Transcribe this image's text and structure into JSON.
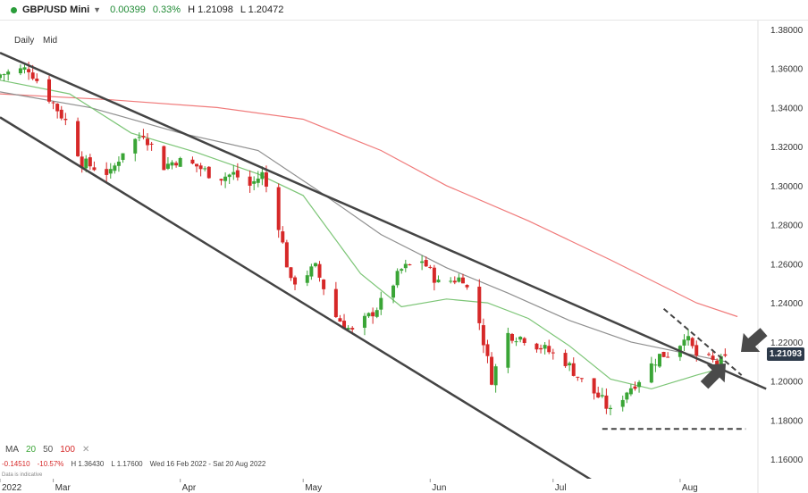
{
  "header": {
    "symbol": "GBP/USD Mini",
    "change": "0.00399",
    "change_pct": "0.33%",
    "high": "H 1.21098",
    "low": "L 1.20472"
  },
  "timeframe": {
    "period": "Daily",
    "price_type": "Mid"
  },
  "ma_legend": {
    "label": "MA",
    "p1": "20",
    "p2": "50",
    "p3": "100"
  },
  "stats": {
    "chg": "-0.14510",
    "chg_pct": "-10.57%",
    "high": "H 1.36430",
    "low": "L 1.17600",
    "range": "Wed 16 Feb 2022 - Sat 20 Aug 2022"
  },
  "indicative": "Data is indicative",
  "price_badge": "1.21093",
  "colors": {
    "up": "#3aa536",
    "down": "#d62828",
    "ma20": "#7cc576",
    "ma50": "#8f8f8f",
    "ma100": "#f07a7a",
    "trend": "#444444"
  },
  "chart_data": {
    "type": "candlestick",
    "ylim": [
      1.15,
      1.385
    ],
    "y_ticks": [
      "1.38000",
      "1.36000",
      "1.34000",
      "1.32000",
      "1.30000",
      "1.28000",
      "1.26000",
      "1.24000",
      "1.22000",
      "1.20000",
      "1.18000",
      "1.16000"
    ],
    "x_ticks": [
      {
        "label": "2022",
        "date": "2022-02-16"
      },
      {
        "label": "Mar",
        "date": "2022-03-01"
      },
      {
        "label": "Apr",
        "date": "2022-04-01"
      },
      {
        "label": "May",
        "date": "2022-05-01"
      },
      {
        "label": "Jun",
        "date": "2022-06-01"
      },
      {
        "label": "Jul",
        "date": "2022-07-01"
      },
      {
        "label": "Aug",
        "date": "2022-08-01"
      }
    ],
    "date_range": [
      "2022-02-16",
      "2022-08-20"
    ],
    "close_path": [
      [
        "2022-02-16",
        1.357
      ],
      [
        "2022-02-23",
        1.36
      ],
      [
        "2022-02-28",
        1.345
      ],
      [
        "2022-03-04",
        1.333
      ],
      [
        "2022-03-08",
        1.312
      ],
      [
        "2022-03-15",
        1.306
      ],
      [
        "2022-03-18",
        1.318
      ],
      [
        "2022-03-23",
        1.327
      ],
      [
        "2022-03-28",
        1.31
      ],
      [
        "2022-03-31",
        1.313
      ],
      [
        "2022-04-05",
        1.31
      ],
      [
        "2022-04-10",
        1.304
      ],
      [
        "2022-04-14",
        1.306
      ],
      [
        "2022-04-18",
        1.3
      ],
      [
        "2022-04-21",
        1.306
      ],
      [
        "2022-04-25",
        1.28
      ],
      [
        "2022-04-28",
        1.25
      ],
      [
        "2022-05-04",
        1.258
      ],
      [
        "2022-05-09",
        1.233
      ],
      [
        "2022-05-13",
        1.225
      ],
      [
        "2022-05-17",
        1.233
      ],
      [
        "2022-05-20",
        1.24
      ],
      [
        "2022-05-25",
        1.257
      ],
      [
        "2022-05-30",
        1.262
      ],
      [
        "2022-06-03",
        1.25
      ],
      [
        "2022-06-09",
        1.253
      ],
      [
        "2022-06-13",
        1.23
      ],
      [
        "2022-06-16",
        1.201
      ],
      [
        "2022-06-20",
        1.224
      ],
      [
        "2022-06-24",
        1.222
      ],
      [
        "2022-06-30",
        1.215
      ],
      [
        "2022-07-04",
        1.21
      ],
      [
        "2022-07-08",
        1.2
      ],
      [
        "2022-07-13",
        1.19
      ],
      [
        "2022-07-15",
        1.184
      ],
      [
        "2022-07-19",
        1.195
      ],
      [
        "2022-07-22",
        1.201
      ],
      [
        "2022-07-27",
        1.213
      ],
      [
        "2022-07-31",
        1.215
      ],
      [
        "2022-08-02",
        1.224
      ],
      [
        "2022-08-05",
        1.213
      ],
      [
        "2022-08-10",
        1.209
      ],
      [
        "2022-08-12",
        1.211
      ]
    ],
    "ma20": [
      [
        "2022-02-16",
        1.354
      ],
      [
        "2022-03-05",
        1.347
      ],
      [
        "2022-03-20",
        1.327
      ],
      [
        "2022-04-05",
        1.317
      ],
      [
        "2022-04-20",
        1.306
      ],
      [
        "2022-05-01",
        1.295
      ],
      [
        "2022-05-15",
        1.255
      ],
      [
        "2022-05-25",
        1.238
      ],
      [
        "2022-06-05",
        1.242
      ],
      [
        "2022-06-15",
        1.24
      ],
      [
        "2022-06-25",
        1.232
      ],
      [
        "2022-07-05",
        1.218
      ],
      [
        "2022-07-15",
        1.201
      ],
      [
        "2022-07-25",
        1.196
      ],
      [
        "2022-08-05",
        1.203
      ],
      [
        "2022-08-12",
        1.207
      ]
    ],
    "ma50": [
      [
        "2022-02-16",
        1.348
      ],
      [
        "2022-03-10",
        1.34
      ],
      [
        "2022-04-01",
        1.327
      ],
      [
        "2022-04-20",
        1.318
      ],
      [
        "2022-05-05",
        1.297
      ],
      [
        "2022-05-20",
        1.275
      ],
      [
        "2022-06-05",
        1.258
      ],
      [
        "2022-06-20",
        1.245
      ],
      [
        "2022-07-05",
        1.231
      ],
      [
        "2022-07-20",
        1.22
      ],
      [
        "2022-08-05",
        1.213
      ],
      [
        "2022-08-12",
        1.21
      ]
    ],
    "ma100": [
      [
        "2022-02-16",
        1.347
      ],
      [
        "2022-03-15",
        1.344
      ],
      [
        "2022-04-10",
        1.34
      ],
      [
        "2022-05-01",
        1.334
      ],
      [
        "2022-05-20",
        1.318
      ],
      [
        "2022-06-05",
        1.3
      ],
      [
        "2022-06-25",
        1.282
      ],
      [
        "2022-07-15",
        1.262
      ],
      [
        "2022-08-05",
        1.24
      ],
      [
        "2022-08-15",
        1.233
      ]
    ],
    "trendlines": [
      {
        "from": [
          "2022-02-16",
          1.368
        ],
        "to": [
          "2022-08-22",
          1.196
        ],
        "style": "solid"
      },
      {
        "from": [
          "2022-02-16",
          1.335
        ],
        "to": [
          "2022-07-20",
          1.137
        ],
        "style": "solid"
      },
      {
        "from": [
          "2022-07-28",
          1.237
        ],
        "to": [
          "2022-08-16",
          1.203
        ],
        "style": "dashed"
      },
      {
        "from": [
          "2022-07-13",
          1.1755
        ],
        "to": [
          "2022-08-17",
          1.1755
        ],
        "style": "dashed"
      }
    ]
  }
}
